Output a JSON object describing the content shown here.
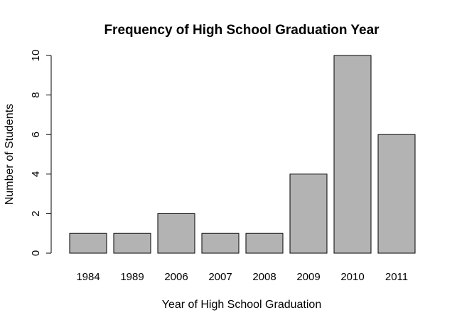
{
  "chart_data": {
    "type": "bar",
    "title": "Frequency of High School Graduation Year",
    "xlabel": "Year of High School Graduation",
    "ylabel": "Number of Students",
    "categories": [
      "1984",
      "1989",
      "2006",
      "2007",
      "2008",
      "2009",
      "2010",
      "2011"
    ],
    "values": [
      1,
      1,
      2,
      1,
      1,
      4,
      10,
      6
    ],
    "ylim": [
      0,
      10
    ],
    "yticks": [
      "0",
      "2",
      "4",
      "6",
      "8",
      "10"
    ],
    "grid": false,
    "bar_color": "#b3b3b3",
    "bar_edge_color": "#000000"
  }
}
